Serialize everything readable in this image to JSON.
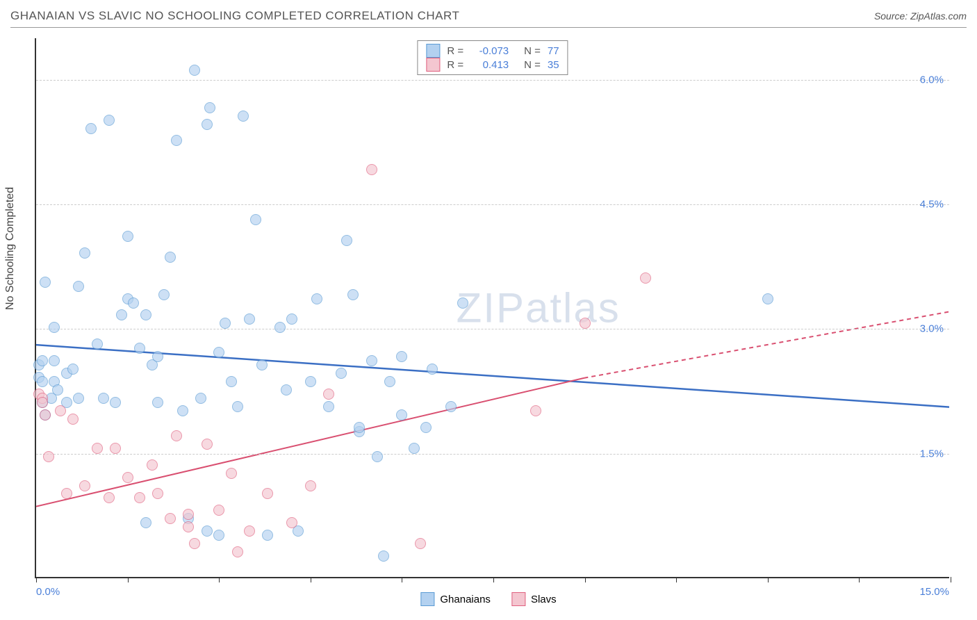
{
  "title": "GHANAIAN VS SLAVIC NO SCHOOLING COMPLETED CORRELATION CHART",
  "source": "Source: ZipAtlas.com",
  "watermark_a": "ZIP",
  "watermark_b": "atlas",
  "y_axis_label": "No Schooling Completed",
  "chart": {
    "type": "scatter",
    "xlim": [
      0,
      15
    ],
    "ylim": [
      0,
      6.5
    ],
    "x_tick_positions": [
      0,
      1.5,
      3,
      4.5,
      6,
      7.5,
      9,
      10.5,
      12,
      13.5,
      15
    ],
    "x_label_min": "0.0%",
    "x_label_max": "15.0%",
    "y_gridlines": [
      1.5,
      3.0,
      4.5,
      6.0
    ],
    "y_tick_labels": [
      "1.5%",
      "3.0%",
      "4.5%",
      "6.0%"
    ],
    "grid_color": "#cccccc",
    "axis_color": "#333333",
    "background_color": "#ffffff",
    "series": [
      {
        "name": "Ghanaians",
        "fill_color": "#b3d1f0",
        "stroke_color": "#5a9bd4",
        "trend_color": "#3b6fc4",
        "trend_width": 2.5,
        "trend": {
          "x1": 0,
          "y1": 2.8,
          "x2": 15,
          "y2": 2.05
        },
        "R": "-0.073",
        "N": "77",
        "points": [
          [
            0.05,
            2.4
          ],
          [
            0.05,
            2.55
          ],
          [
            0.1,
            2.1
          ],
          [
            0.1,
            2.35
          ],
          [
            0.1,
            2.6
          ],
          [
            0.15,
            1.95
          ],
          [
            0.15,
            3.55
          ],
          [
            0.25,
            2.15
          ],
          [
            0.3,
            2.35
          ],
          [
            0.3,
            2.6
          ],
          [
            0.3,
            3.0
          ],
          [
            0.35,
            2.25
          ],
          [
            0.5,
            2.1
          ],
          [
            0.5,
            2.45
          ],
          [
            0.6,
            2.5
          ],
          [
            0.7,
            2.15
          ],
          [
            0.7,
            3.5
          ],
          [
            0.8,
            3.9
          ],
          [
            0.9,
            5.4
          ],
          [
            1.0,
            2.8
          ],
          [
            1.1,
            2.15
          ],
          [
            1.2,
            5.5
          ],
          [
            1.3,
            2.1
          ],
          [
            1.4,
            3.15
          ],
          [
            1.5,
            4.1
          ],
          [
            1.5,
            3.35
          ],
          [
            1.6,
            3.3
          ],
          [
            1.7,
            2.75
          ],
          [
            1.8,
            3.15
          ],
          [
            1.8,
            0.65
          ],
          [
            1.9,
            2.55
          ],
          [
            2.0,
            2.1
          ],
          [
            2.0,
            2.65
          ],
          [
            2.1,
            3.4
          ],
          [
            2.2,
            3.85
          ],
          [
            2.3,
            5.25
          ],
          [
            2.4,
            2.0
          ],
          [
            2.5,
            0.7
          ],
          [
            2.6,
            6.1
          ],
          [
            2.7,
            2.15
          ],
          [
            2.8,
            5.45
          ],
          [
            2.8,
            0.55
          ],
          [
            2.85,
            5.65
          ],
          [
            3.0,
            2.7
          ],
          [
            3.0,
            0.5
          ],
          [
            3.1,
            3.05
          ],
          [
            3.2,
            2.35
          ],
          [
            3.3,
            2.05
          ],
          [
            3.4,
            5.55
          ],
          [
            3.5,
            3.1
          ],
          [
            3.6,
            4.3
          ],
          [
            3.7,
            2.55
          ],
          [
            3.8,
            0.5
          ],
          [
            4.0,
            3.0
          ],
          [
            4.1,
            2.25
          ],
          [
            4.2,
            3.1
          ],
          [
            4.3,
            0.55
          ],
          [
            4.5,
            2.35
          ],
          [
            4.6,
            3.35
          ],
          [
            4.8,
            2.05
          ],
          [
            5.0,
            2.45
          ],
          [
            5.1,
            4.05
          ],
          [
            5.2,
            3.4
          ],
          [
            5.3,
            1.75
          ],
          [
            5.3,
            1.8
          ],
          [
            5.5,
            2.6
          ],
          [
            5.6,
            1.45
          ],
          [
            5.7,
            0.25
          ],
          [
            5.8,
            2.35
          ],
          [
            6.0,
            1.95
          ],
          [
            6.0,
            2.65
          ],
          [
            6.2,
            1.55
          ],
          [
            6.4,
            1.8
          ],
          [
            6.5,
            2.5
          ],
          [
            6.8,
            2.05
          ],
          [
            7.0,
            3.3
          ],
          [
            12.0,
            3.35
          ]
        ]
      },
      {
        "name": "Slavs",
        "fill_color": "#f4c6d0",
        "stroke_color": "#e0607f",
        "trend_color": "#d94f70",
        "trend_width": 2,
        "trend": {
          "x1": 0,
          "y1": 0.85,
          "x2": 9.0,
          "y2": 2.4
        },
        "trend_dashed_ext": {
          "x1": 9.0,
          "y1": 2.4,
          "x2": 15,
          "y2": 3.2
        },
        "R": "0.413",
        "N": "35",
        "points": [
          [
            0.05,
            2.2
          ],
          [
            0.1,
            2.15
          ],
          [
            0.1,
            2.1
          ],
          [
            0.15,
            1.95
          ],
          [
            0.2,
            1.45
          ],
          [
            0.4,
            2.0
          ],
          [
            0.5,
            1.0
          ],
          [
            0.6,
            1.9
          ],
          [
            0.8,
            1.1
          ],
          [
            1.0,
            1.55
          ],
          [
            1.2,
            0.95
          ],
          [
            1.3,
            1.55
          ],
          [
            1.5,
            1.2
          ],
          [
            1.7,
            0.95
          ],
          [
            1.9,
            1.35
          ],
          [
            2.0,
            1.0
          ],
          [
            2.2,
            0.7
          ],
          [
            2.3,
            1.7
          ],
          [
            2.5,
            0.6
          ],
          [
            2.5,
            0.75
          ],
          [
            2.6,
            0.4
          ],
          [
            2.8,
            1.6
          ],
          [
            3.0,
            0.8
          ],
          [
            3.2,
            1.25
          ],
          [
            3.3,
            0.3
          ],
          [
            3.5,
            0.55
          ],
          [
            3.8,
            1.0
          ],
          [
            4.2,
            0.65
          ],
          [
            4.5,
            1.1
          ],
          [
            4.8,
            2.2
          ],
          [
            5.5,
            4.9
          ],
          [
            6.3,
            0.4
          ],
          [
            8.2,
            2.0
          ],
          [
            9.0,
            3.05
          ],
          [
            10.0,
            3.6
          ]
        ]
      }
    ],
    "legend_top": {
      "border_color": "#888888",
      "rows": [
        {
          "swatch_fill": "#b3d1f0",
          "swatch_stroke": "#5a9bd4",
          "R_label": "R =",
          "R": "-0.073",
          "N_label": "N =",
          "N": "77"
        },
        {
          "swatch_fill": "#f4c6d0",
          "swatch_stroke": "#e0607f",
          "R_label": "R =",
          "R": "0.413",
          "N_label": "N =",
          "N": "35"
        }
      ]
    },
    "legend_bottom": [
      {
        "swatch_fill": "#b3d1f0",
        "swatch_stroke": "#5a9bd4",
        "label": "Ghanaians"
      },
      {
        "swatch_fill": "#f4c6d0",
        "swatch_stroke": "#e0607f",
        "label": "Slavs"
      }
    ]
  }
}
